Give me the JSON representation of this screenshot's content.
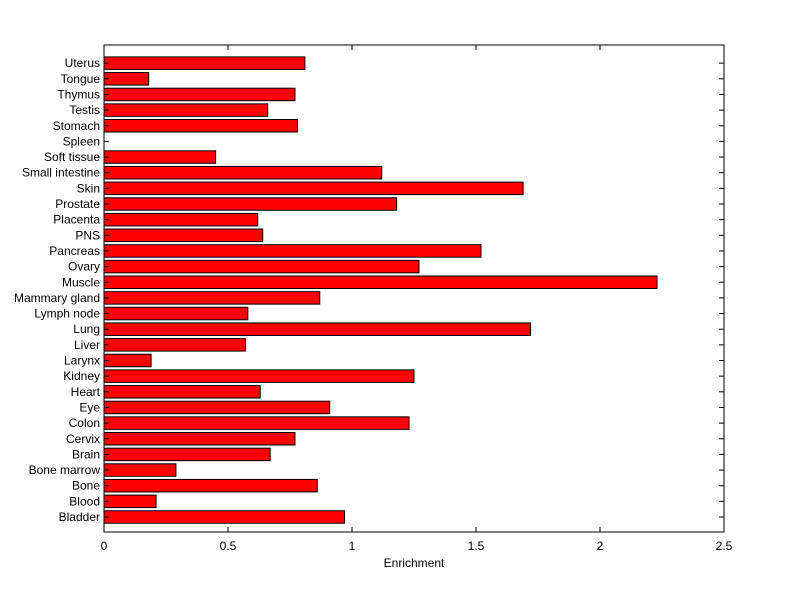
{
  "chart_data": {
    "type": "bar",
    "orientation": "horizontal",
    "title": "",
    "xlabel": "Enrichment",
    "ylabel": "",
    "xlim": [
      0,
      2.5
    ],
    "xticks": [
      0,
      0.5,
      1,
      1.5,
      2,
      2.5
    ],
    "xtick_labels": [
      "0",
      "0.5",
      "1",
      "1.5",
      "2",
      "2.5"
    ],
    "grid": false,
    "bar_color": "#ff0000",
    "categories": [
      "Bladder",
      "Blood",
      "Bone",
      "Bone marrow",
      "Brain",
      "Cervix",
      "Colon",
      "Eye",
      "Heart",
      "Kidney",
      "Larynx",
      "Liver",
      "Lung",
      "Lymph node",
      "Mammary gland",
      "Muscle",
      "Ovary",
      "Pancreas",
      "PNS",
      "Placenta",
      "Prostate",
      "Skin",
      "Small intestine",
      "Soft tissue",
      "Spleen",
      "Stomach",
      "Testis",
      "Thymus",
      "Tongue",
      "Uterus"
    ],
    "values": [
      0.97,
      0.21,
      0.86,
      0.29,
      0.67,
      0.77,
      1.23,
      0.91,
      0.63,
      1.25,
      0.19,
      0.57,
      1.72,
      0.58,
      0.87,
      2.23,
      1.27,
      1.52,
      0.64,
      0.62,
      1.18,
      1.69,
      1.12,
      0.45,
      0.0,
      0.78,
      0.66,
      0.77,
      0.18,
      0.81
    ]
  }
}
